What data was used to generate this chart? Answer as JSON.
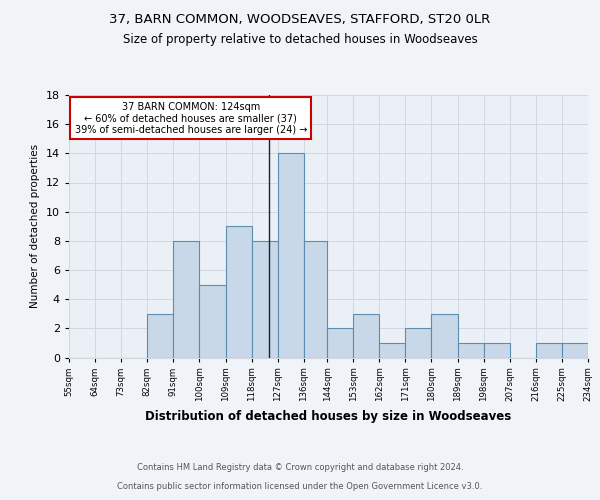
{
  "title1": "37, BARN COMMON, WOODSEAVES, STAFFORD, ST20 0LR",
  "title2": "Size of property relative to detached houses in Woodseaves",
  "xlabel": "Distribution of detached houses by size in Woodseaves",
  "ylabel": "Number of detached properties",
  "footnote1": "Contains HM Land Registry data © Crown copyright and database right 2024.",
  "footnote2": "Contains public sector information licensed under the Open Government Licence v3.0.",
  "annotation_line1": "37 BARN COMMON: 124sqm",
  "annotation_line2": "← 60% of detached houses are smaller (37)",
  "annotation_line3": "39% of semi-detached houses are larger (24) →",
  "property_size": 124,
  "bar_edges": [
    55,
    64,
    73,
    82,
    91,
    100,
    109,
    118,
    127,
    136,
    144,
    153,
    162,
    171,
    180,
    189,
    198,
    207,
    216,
    225,
    234
  ],
  "bar_heights": [
    0,
    0,
    0,
    3,
    8,
    5,
    9,
    8,
    14,
    8,
    2,
    3,
    1,
    2,
    3,
    1,
    1,
    0,
    1,
    1
  ],
  "bar_color": "#c8d8e8",
  "bar_edge_color": "#5b8db0",
  "vline_color": "#222222",
  "box_edge_color": "#cc0000",
  "box_face_color": "#ffffff",
  "tick_labels": [
    "55sqm",
    "64sqm",
    "73sqm",
    "82sqm",
    "91sqm",
    "100sqm",
    "109sqm",
    "118sqm",
    "127sqm",
    "136sqm",
    "144sqm",
    "153sqm",
    "162sqm",
    "171sqm",
    "180sqm",
    "189sqm",
    "198sqm",
    "207sqm",
    "216sqm",
    "225sqm",
    "234sqm"
  ],
  "ylim": [
    0,
    18
  ],
  "yticks": [
    0,
    2,
    4,
    6,
    8,
    10,
    12,
    14,
    16,
    18
  ],
  "bg_color": "#f0f4f8",
  "axes_bg_color": "#eaf0f6",
  "grid_color": "#d0d8e0"
}
